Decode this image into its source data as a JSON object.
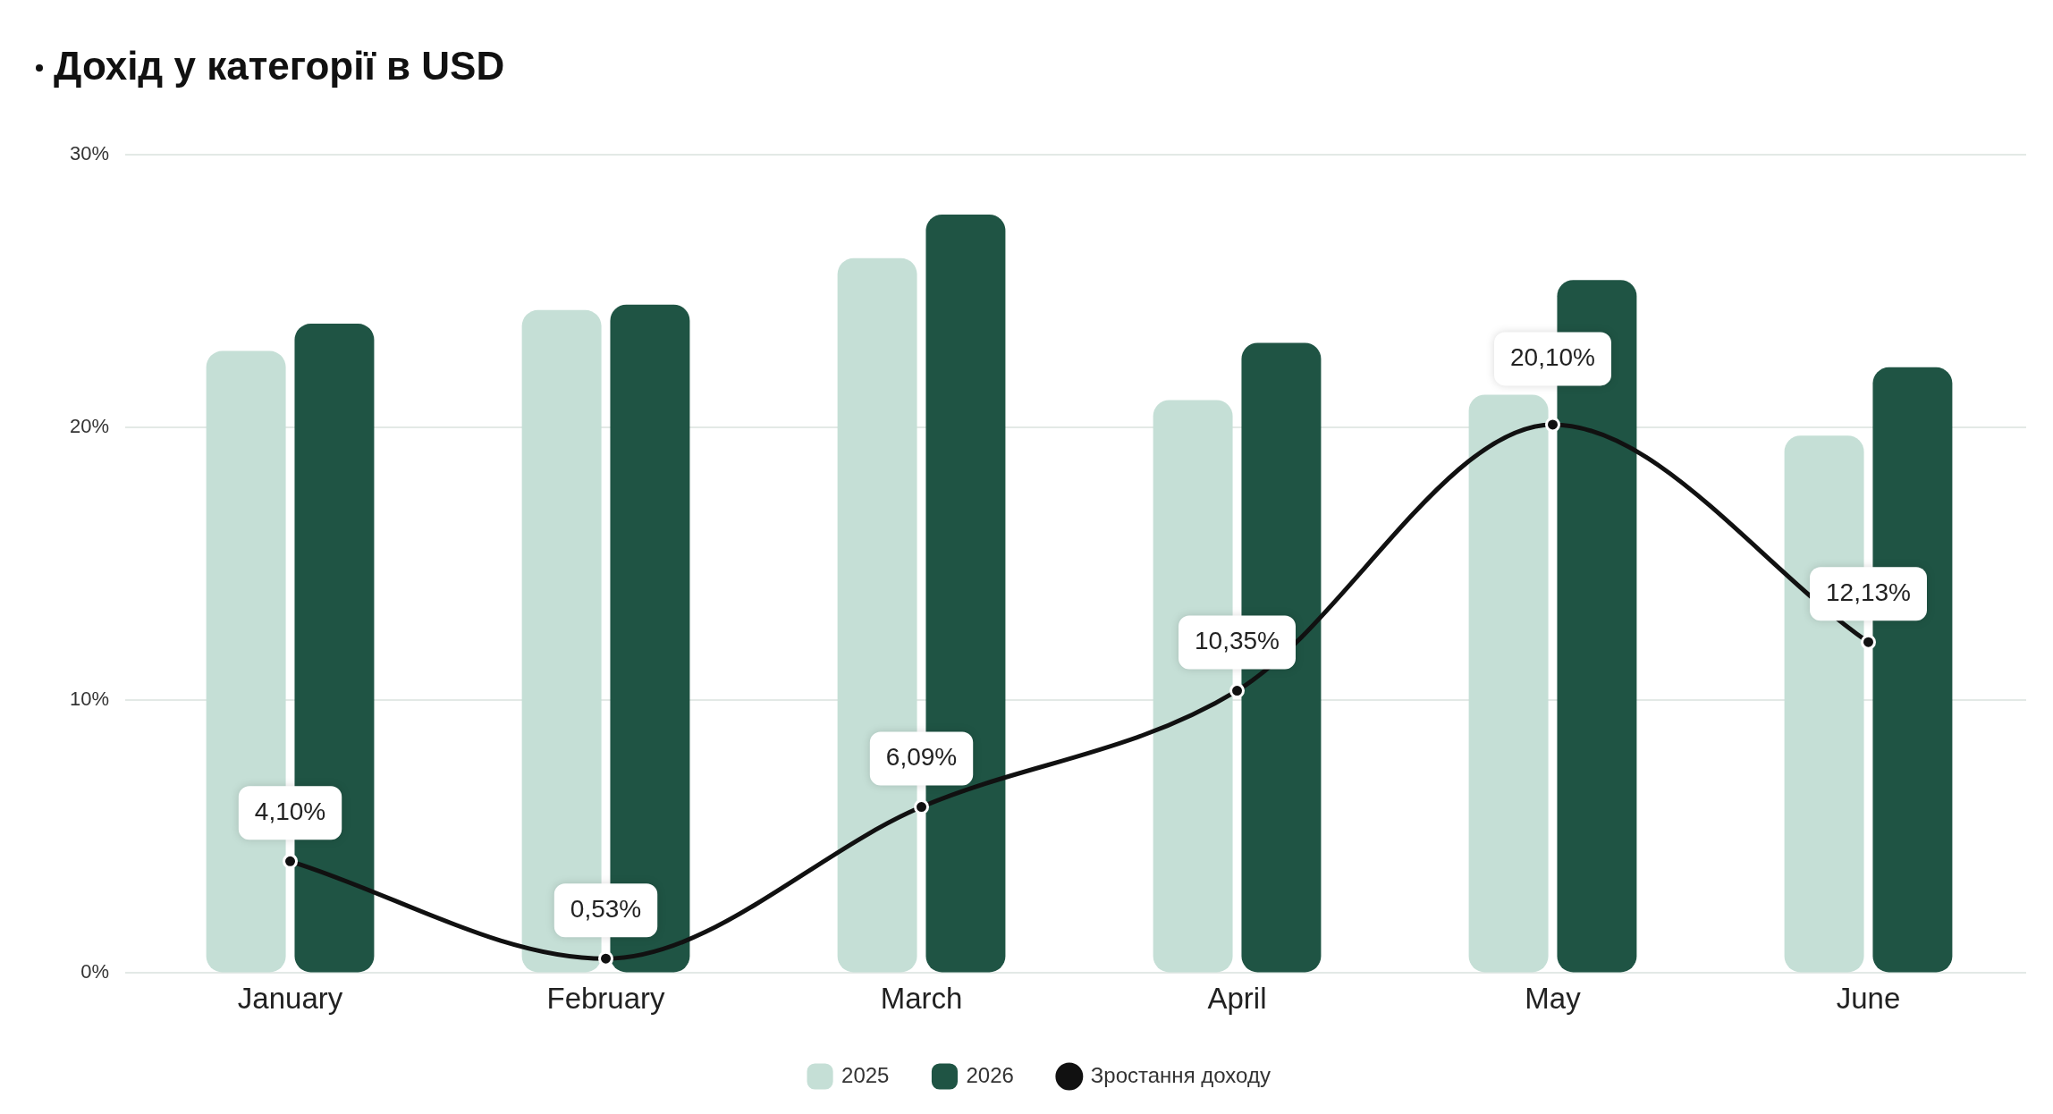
{
  "chart_data": {
    "type": "bar",
    "title": "Дохід у категорії в USD",
    "categories": [
      "January",
      "February",
      "March",
      "April",
      "May",
      "June"
    ],
    "series": [
      {
        "name": "2025",
        "color": "#c5dfd6",
        "values": [
          22.8,
          24.3,
          26.2,
          21.0,
          21.2,
          19.7
        ]
      },
      {
        "name": "2026",
        "color": "#1f5444",
        "values": [
          23.8,
          24.5,
          27.8,
          23.1,
          25.4,
          22.2
        ]
      },
      {
        "name": "Зростання доходу",
        "type": "line",
        "color": "#111111",
        "values": [
          4.1,
          0.53,
          6.09,
          10.35,
          20.1,
          12.13
        ],
        "value_labels": [
          "4,10%",
          "0,53%",
          "6,09%",
          "10,35%",
          "20,10%",
          "12,13%"
        ]
      }
    ],
    "ylim": [
      0,
      30
    ],
    "yticks": [
      {
        "value": 0,
        "label": "0%"
      },
      {
        "value": 10,
        "label": "10%"
      },
      {
        "value": 20,
        "label": "20%"
      },
      {
        "value": 30,
        "label": "30%"
      }
    ],
    "grid": "y",
    "legend": "bottom",
    "marker": "circle",
    "line_style": "solid"
  }
}
